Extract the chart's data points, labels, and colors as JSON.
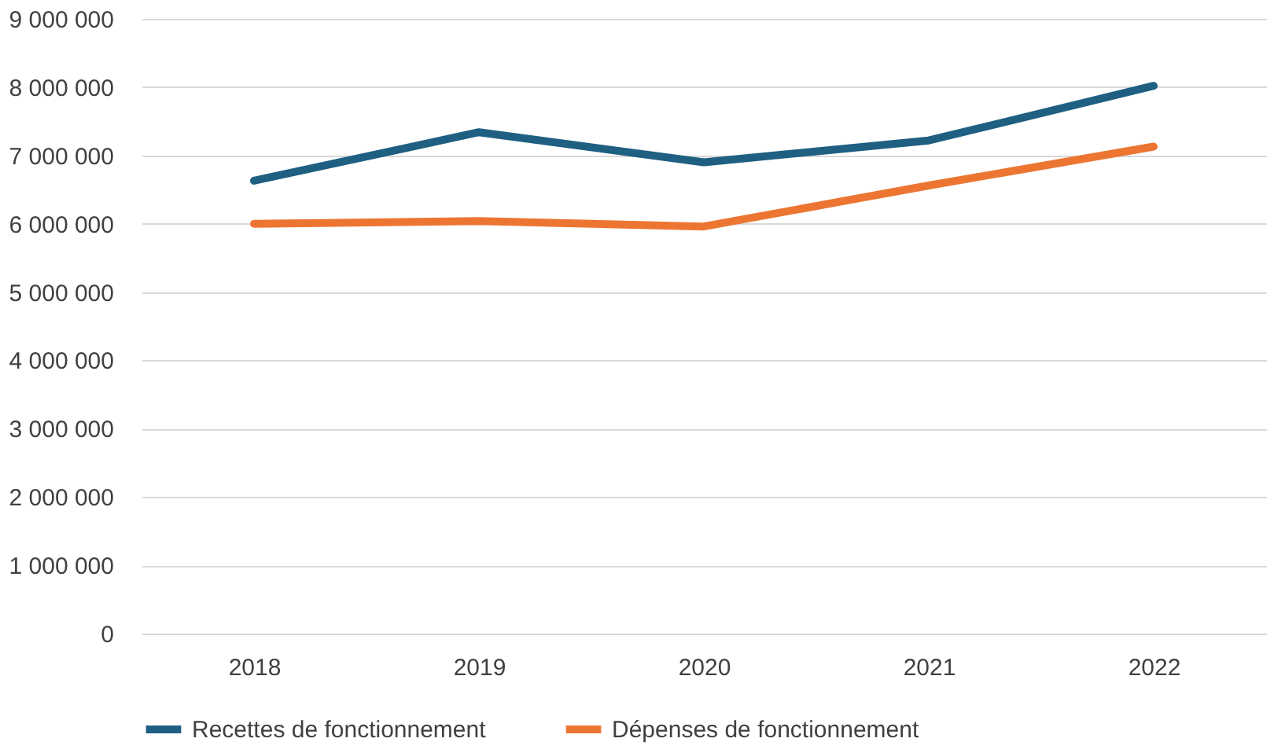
{
  "chart_data": {
    "type": "line",
    "categories": [
      "2018",
      "2019",
      "2020",
      "2021",
      "2022"
    ],
    "series": [
      {
        "name": "Recettes de fonctionnement",
        "color": "#1f5f82",
        "values": [
          6630000,
          7340000,
          6900000,
          7220000,
          8020000
        ]
      },
      {
        "name": "Dépenses de fonctionnement",
        "color": "#ed7532",
        "values": [
          6000000,
          6040000,
          5960000,
          6560000,
          7130000
        ]
      }
    ],
    "ylim": [
      0,
      9000000
    ],
    "yticks": [
      0,
      {
        "value": 1000000,
        "label": "1 000 000"
      },
      {
        "value": 2000000,
        "label": "2 000 000"
      },
      {
        "value": 3000000,
        "label": "3 000 000"
      },
      {
        "value": 4000000,
        "label": "4 000 000"
      },
      {
        "value": 5000000,
        "label": "5 000 000"
      },
      {
        "value": 6000000,
        "label": "6 000 000"
      },
      {
        "value": 7000000,
        "label": "7 000 000"
      },
      {
        "value": 8000000,
        "label": "8 000 000"
      },
      {
        "value": 9000000,
        "label": "9 000 000"
      }
    ],
    "grid": "y",
    "legend": "bottom",
    "marker": "none",
    "line_style": "solid"
  }
}
